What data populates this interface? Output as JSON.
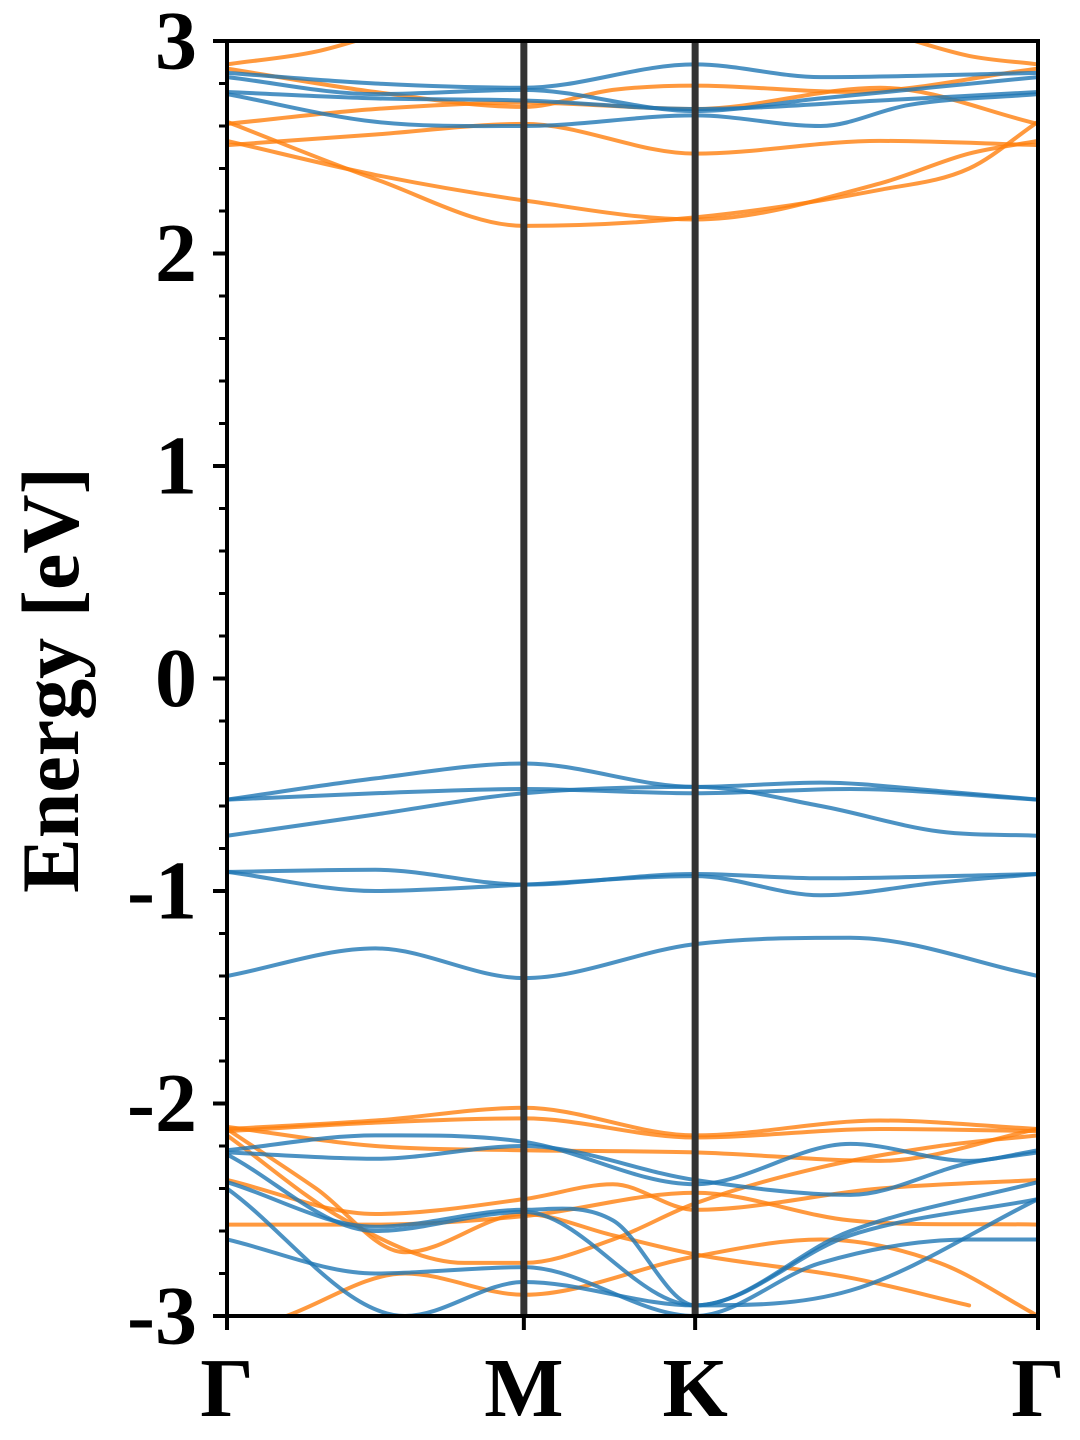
{
  "chart_data": {
    "type": "line",
    "title": "",
    "ylabel": "Energy [eV]",
    "xlabel": "",
    "ylim": [
      -3,
      3
    ],
    "yticks": [
      -3,
      -2,
      -1,
      0,
      1,
      2,
      3
    ],
    "ytick_labels": [
      "-3",
      "-2",
      "-1",
      "0",
      "1",
      "2",
      "3"
    ],
    "y_minor_step": 0.2,
    "kpath": {
      "labels": [
        "Γ",
        "M",
        "K",
        "Γ"
      ],
      "positions": [
        0,
        1.0,
        1.577,
        2.732
      ]
    },
    "colors": {
      "blue": "#1f77b4",
      "orange": "#ff7f0e",
      "divider": "#333333"
    },
    "grid": false,
    "series": [
      {
        "color": "orange",
        "values": [
          [
            0,
            2.87
          ],
          [
            0.5,
            2.76
          ],
          [
            1.0,
            2.69
          ],
          [
            1.3,
            2.77
          ],
          [
            1.577,
            2.79
          ],
          [
            2.1,
            2.76
          ],
          [
            2.732,
            2.87
          ]
        ]
      },
      {
        "color": "orange",
        "values": [
          [
            0,
            2.89
          ],
          [
            0.3,
            2.95
          ],
          [
            0.55,
            3.05
          ]
        ]
      },
      {
        "color": "orange",
        "values": [
          [
            2.2,
            3.05
          ],
          [
            2.5,
            2.93
          ],
          [
            2.732,
            2.89
          ]
        ]
      },
      {
        "color": "orange",
        "values": [
          [
            0,
            2.61
          ],
          [
            0.5,
            2.68
          ],
          [
            1.0,
            2.71
          ],
          [
            1.577,
            2.68
          ],
          [
            2.2,
            2.78
          ],
          [
            2.732,
            2.61
          ]
        ]
      },
      {
        "color": "orange",
        "values": [
          [
            0,
            2.51
          ],
          [
            0.5,
            2.56
          ],
          [
            1.0,
            2.61
          ],
          [
            1.577,
            2.47
          ],
          [
            2.2,
            2.53
          ],
          [
            2.732,
            2.51
          ]
        ]
      },
      {
        "color": "orange",
        "values": [
          [
            0,
            2.53
          ],
          [
            0.5,
            2.37
          ],
          [
            1.0,
            2.25
          ],
          [
            1.577,
            2.16
          ],
          [
            2.2,
            2.33
          ],
          [
            2.5,
            2.47
          ],
          [
            2.732,
            2.53
          ]
        ]
      },
      {
        "color": "orange",
        "values": [
          [
            0,
            2.62
          ],
          [
            0.5,
            2.35
          ],
          [
            1.0,
            2.13
          ],
          [
            1.577,
            2.17
          ],
          [
            2.2,
            2.3
          ],
          [
            2.5,
            2.4
          ],
          [
            2.732,
            2.62
          ]
        ]
      },
      {
        "color": "blue",
        "values": [
          [
            0,
            2.85
          ],
          [
            0.5,
            2.8
          ],
          [
            1.0,
            2.78
          ],
          [
            1.577,
            2.89
          ],
          [
            2.0,
            2.83
          ],
          [
            2.732,
            2.85
          ]
        ]
      },
      {
        "color": "blue",
        "values": [
          [
            0,
            2.83
          ],
          [
            0.5,
            2.75
          ],
          [
            1.0,
            2.77
          ],
          [
            1.577,
            2.67
          ],
          [
            2.0,
            2.73
          ],
          [
            2.732,
            2.83
          ]
        ]
      },
      {
        "color": "blue",
        "values": [
          [
            0,
            2.76
          ],
          [
            0.5,
            2.73
          ],
          [
            1.0,
            2.72
          ],
          [
            1.577,
            2.68
          ],
          [
            2.2,
            2.72
          ],
          [
            2.732,
            2.76
          ]
        ]
      },
      {
        "color": "blue",
        "values": [
          [
            0,
            2.75
          ],
          [
            0.5,
            2.62
          ],
          [
            1.0,
            2.6
          ],
          [
            1.577,
            2.65
          ],
          [
            2.0,
            2.6
          ],
          [
            2.3,
            2.7
          ],
          [
            2.732,
            2.75
          ]
        ]
      },
      {
        "color": "blue",
        "values": [
          [
            0,
            -0.57
          ],
          [
            0.5,
            -0.47
          ],
          [
            1.0,
            -0.4
          ],
          [
            1.577,
            -0.51
          ],
          [
            2.0,
            -0.49
          ],
          [
            2.4,
            -0.53
          ],
          [
            2.732,
            -0.57
          ]
        ]
      },
      {
        "color": "blue",
        "values": [
          [
            0,
            -0.57
          ],
          [
            0.5,
            -0.54
          ],
          [
            1.0,
            -0.52
          ],
          [
            1.577,
            -0.54
          ],
          [
            2.1,
            -0.52
          ],
          [
            2.732,
            -0.57
          ]
        ]
      },
      {
        "color": "blue",
        "values": [
          [
            0,
            -0.74
          ],
          [
            0.5,
            -0.64
          ],
          [
            1.0,
            -0.54
          ],
          [
            1.577,
            -0.51
          ],
          [
            2.0,
            -0.6
          ],
          [
            2.4,
            -0.72
          ],
          [
            2.732,
            -0.74
          ]
        ]
      },
      {
        "color": "blue",
        "values": [
          [
            0,
            -0.91
          ],
          [
            0.5,
            -0.9
          ],
          [
            1.0,
            -0.97
          ],
          [
            1.577,
            -0.92
          ],
          [
            2.0,
            -0.94
          ],
          [
            2.732,
            -0.92
          ]
        ]
      },
      {
        "color": "blue",
        "values": [
          [
            0,
            -0.91
          ],
          [
            0.5,
            -1.0
          ],
          [
            1.0,
            -0.97
          ],
          [
            1.577,
            -0.93
          ],
          [
            2.0,
            -1.02
          ],
          [
            2.4,
            -0.96
          ],
          [
            2.732,
            -0.92
          ]
        ]
      },
      {
        "color": "blue",
        "values": [
          [
            0,
            -1.4
          ],
          [
            0.5,
            -1.27
          ],
          [
            1.0,
            -1.41
          ],
          [
            1.577,
            -1.25
          ],
          [
            2.1,
            -1.22
          ],
          [
            2.732,
            -1.4
          ]
        ]
      },
      {
        "color": "orange",
        "values": [
          [
            0,
            -2.12
          ],
          [
            0.5,
            -2.08
          ],
          [
            1.0,
            -2.02
          ],
          [
            1.577,
            -2.15
          ],
          [
            2.2,
            -2.08
          ],
          [
            2.732,
            -2.12
          ]
        ]
      },
      {
        "color": "orange",
        "values": [
          [
            0,
            -2.13
          ],
          [
            0.5,
            -2.09
          ],
          [
            1.0,
            -2.07
          ],
          [
            1.577,
            -2.16
          ],
          [
            2.2,
            -2.12
          ],
          [
            2.732,
            -2.13
          ]
        ]
      },
      {
        "color": "orange",
        "values": [
          [
            0,
            -2.11
          ],
          [
            0.5,
            -2.2
          ],
          [
            1.0,
            -2.22
          ],
          [
            1.577,
            -2.23
          ],
          [
            2.2,
            -2.27
          ],
          [
            2.732,
            -2.12
          ]
        ]
      },
      {
        "color": "orange",
        "values": [
          [
            0,
            -2.36
          ],
          [
            0.5,
            -2.52
          ],
          [
            1.0,
            -2.45
          ],
          [
            1.3,
            -2.38
          ],
          [
            1.577,
            -2.5
          ],
          [
            2.2,
            -2.4
          ],
          [
            2.732,
            -2.36
          ]
        ]
      },
      {
        "color": "orange",
        "values": [
          [
            0,
            -2.57
          ],
          [
            0.5,
            -2.57
          ],
          [
            1.0,
            -2.53
          ],
          [
            1.577,
            -2.42
          ],
          [
            2.1,
            -2.55
          ],
          [
            2.732,
            -2.57
          ]
        ]
      },
      {
        "color": "orange",
        "values": [
          [
            0,
            -2.12
          ],
          [
            0.3,
            -2.4
          ],
          [
            0.6,
            -2.7
          ],
          [
            1.0,
            -2.52
          ],
          [
            1.3,
            -2.62
          ],
          [
            1.577,
            -2.71
          ],
          [
            2.1,
            -2.82
          ],
          [
            2.5,
            -2.95
          ]
        ]
      },
      {
        "color": "orange",
        "values": [
          [
            0,
            -2.15
          ],
          [
            0.4,
            -2.55
          ],
          [
            0.8,
            -2.75
          ],
          [
            1.0,
            -2.75
          ],
          [
            1.3,
            -2.64
          ],
          [
            1.577,
            -2.47
          ],
          [
            2.0,
            -2.3
          ],
          [
            2.4,
            -2.2
          ],
          [
            2.732,
            -2.15
          ]
        ]
      },
      {
        "color": "orange",
        "values": [
          [
            0.2,
            -3.0
          ],
          [
            0.6,
            -2.8
          ],
          [
            1.0,
            -2.9
          ],
          [
            1.577,
            -2.72
          ],
          [
            2.0,
            -2.64
          ],
          [
            2.4,
            -2.75
          ],
          [
            2.732,
            -3.0
          ]
        ]
      },
      {
        "color": "blue",
        "values": [
          [
            0,
            -2.22
          ],
          [
            0.5,
            -2.15
          ],
          [
            1.0,
            -2.18
          ],
          [
            1.577,
            -2.38
          ],
          [
            2.1,
            -2.19
          ],
          [
            2.5,
            -2.27
          ],
          [
            2.732,
            -2.22
          ]
        ]
      },
      {
        "color": "blue",
        "values": [
          [
            0,
            -2.23
          ],
          [
            0.5,
            -2.26
          ],
          [
            1.0,
            -2.2
          ],
          [
            1.577,
            -2.36
          ],
          [
            2.1,
            -2.43
          ],
          [
            2.5,
            -2.28
          ],
          [
            2.732,
            -2.23
          ]
        ]
      },
      {
        "color": "blue",
        "values": [
          [
            0,
            -2.37
          ],
          [
            0.5,
            -2.58
          ],
          [
            1.0,
            -2.5
          ],
          [
            1.3,
            -2.55
          ],
          [
            1.577,
            -2.95
          ],
          [
            2.1,
            -2.6
          ],
          [
            2.732,
            -2.37
          ]
        ]
      },
      {
        "color": "blue",
        "values": [
          [
            0,
            -2.24
          ],
          [
            0.5,
            -2.6
          ],
          [
            1.0,
            -2.51
          ],
          [
            1.577,
            -2.95
          ],
          [
            2.1,
            -2.62
          ],
          [
            2.732,
            -2.45
          ]
        ]
      },
      {
        "color": "blue",
        "values": [
          [
            0,
            -2.64
          ],
          [
            0.5,
            -2.8
          ],
          [
            1.0,
            -2.77
          ],
          [
            1.577,
            -3.0
          ],
          [
            2.0,
            -2.75
          ],
          [
            2.5,
            -2.64
          ],
          [
            2.732,
            -2.64
          ]
        ]
      },
      {
        "color": "blue",
        "values": [
          [
            0,
            -2.4
          ],
          [
            0.6,
            -3.0
          ],
          [
            1.0,
            -2.84
          ],
          [
            1.577,
            -2.95
          ],
          [
            2.1,
            -2.88
          ],
          [
            2.732,
            -2.45
          ]
        ]
      }
    ]
  }
}
